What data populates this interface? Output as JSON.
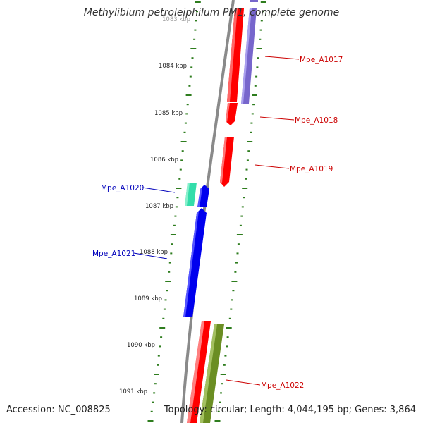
{
  "title": "Methylibium petroleiphilum PM1, complete genome",
  "accession": "Accession: NC_008825",
  "topology": "Topology: circular; Length: 4,044,195 bp; Genes: 3,864",
  "colors": {
    "backbone": "#888888",
    "tick": "#2e7d1e",
    "forward_label": "#cc0000",
    "reverse_label": "#0000bb",
    "gene_red": "#ff0000",
    "gene_purple": "#7766cc",
    "gene_teal": "#33ddaa",
    "gene_blue": "#0000ee",
    "gene_olive": "#6b8e23"
  },
  "kbp_labels": [
    "1083 kbp",
    "1084 kbp",
    "1085 kbp",
    "1086 kbp",
    "1087 kbp",
    "1088 kbp",
    "1089 kbp",
    "1090 kbp",
    "1091 kbp"
  ],
  "gene_labels": {
    "a1017": "Mpe_A1017",
    "a1018": "Mpe_A1018",
    "a1019": "Mpe_A1019",
    "a1020": "Mpe_A1020",
    "a1021": "Mpe_A1021",
    "a1022": "Mpe_A1022"
  }
}
